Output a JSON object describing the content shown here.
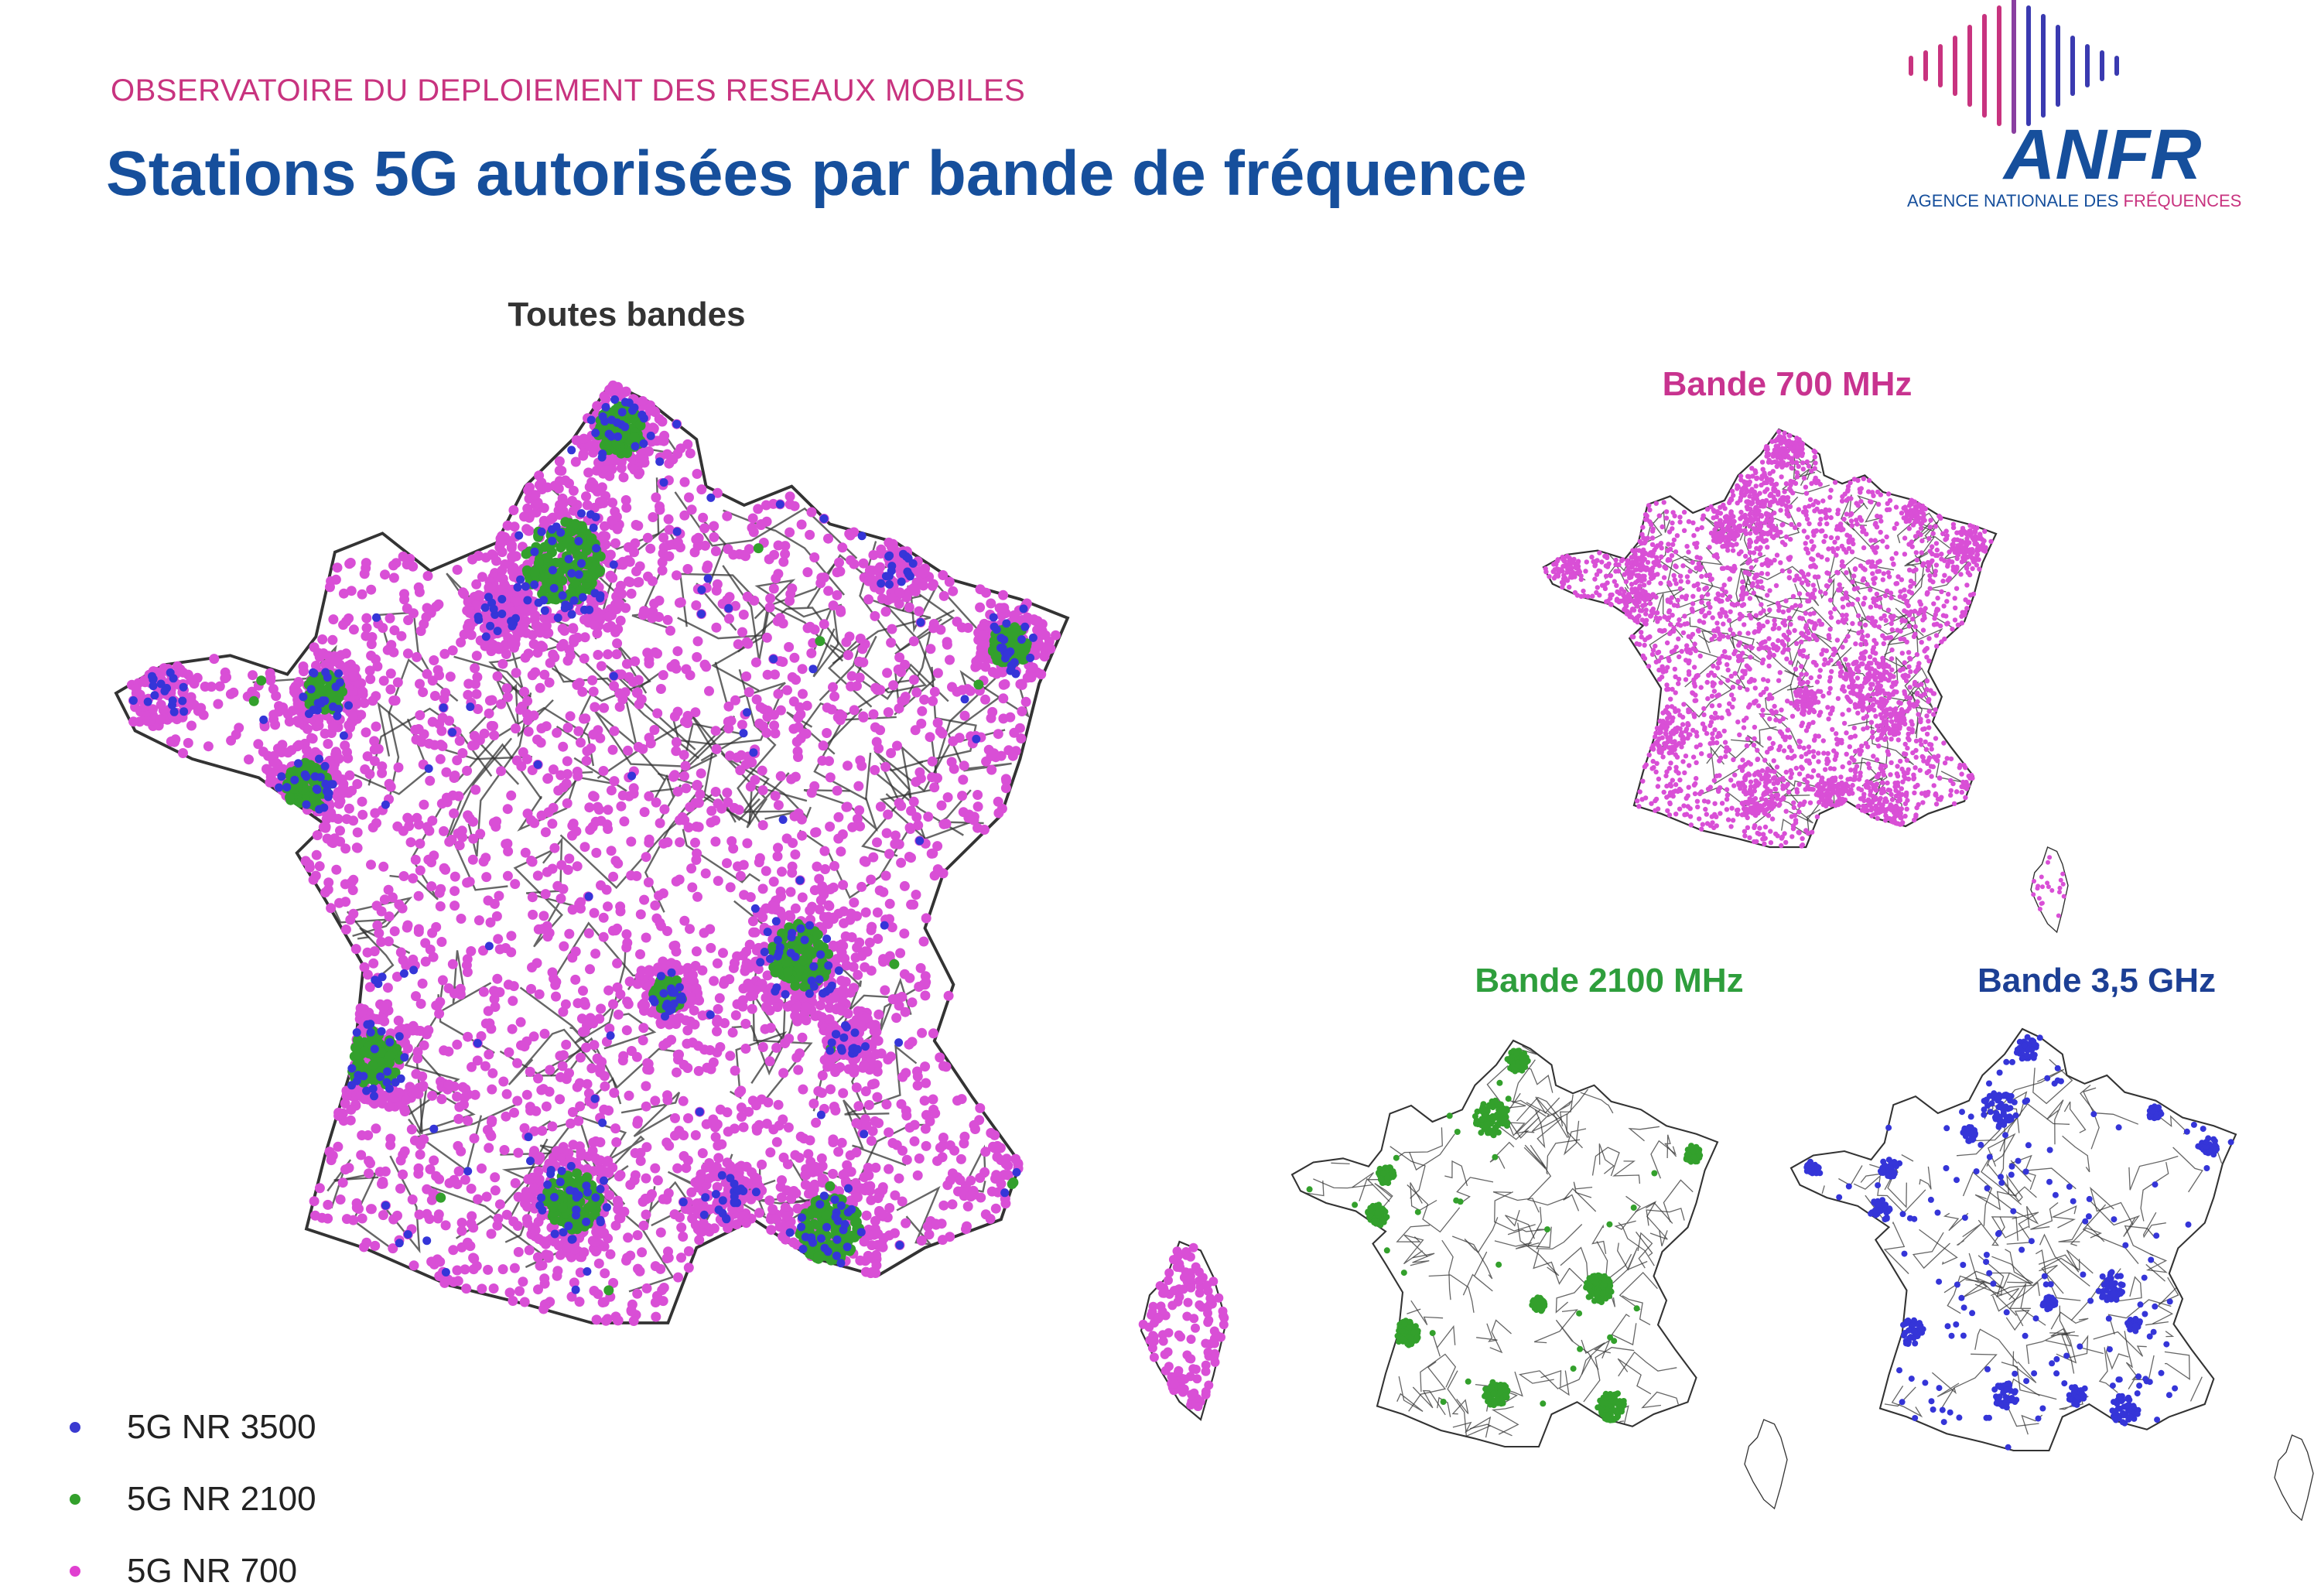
{
  "header": {
    "subtitle": "OBSERVATOIRE DU DEPLOIEMENT DES RESEAUX MOBILES",
    "title": "Stations 5G autorisées par bande de fréquence"
  },
  "logo": {
    "name": "ANFR",
    "tagline_main": "AGENCE NATIONALE DES ",
    "tagline_highlight": "FRÉQUENCES"
  },
  "maps": {
    "all": {
      "title": "Toutes bandes",
      "color": "#333333"
    },
    "b700": {
      "title": "Bande 700 MHz",
      "color": "#c8338f"
    },
    "b2100": {
      "title": "Bande 2100 MHz",
      "color": "#2e9e3c"
    },
    "b3500": {
      "title": "Bande 3,5 GHz",
      "color": "#1c3f94"
    }
  },
  "legend": [
    {
      "label": "5G NR 3500",
      "color": "#3a3ad0"
    },
    {
      "label": "5G NR 2100",
      "color": "#33a02c"
    },
    {
      "label": "5G NR 700",
      "color": "#e040d0"
    }
  ],
  "colors": {
    "nr700": "#d94fd6",
    "nr2100": "#33a02c",
    "nr3500": "#3535d8",
    "border": "#333333"
  }
}
